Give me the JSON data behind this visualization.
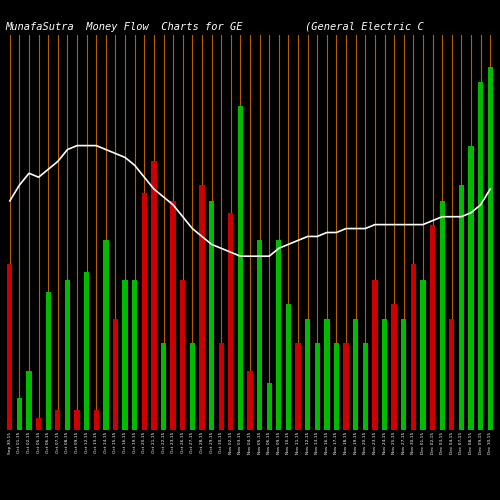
{
  "title": "MunafaSutra  Money Flow  Charts for GE          (General Electric C",
  "background_color": "#000000",
  "bar_colors": [
    "red",
    "green",
    "green",
    "red",
    "green",
    "red",
    "green",
    "red",
    "green",
    "red",
    "green",
    "red",
    "green",
    "green",
    "red",
    "red",
    "green",
    "red",
    "red",
    "green",
    "red",
    "green",
    "red",
    "red",
    "green",
    "red",
    "green",
    "green",
    "green",
    "green",
    "red",
    "green",
    "green",
    "green",
    "green",
    "red",
    "green",
    "green",
    "red",
    "green",
    "red",
    "green",
    "red",
    "green",
    "red",
    "green",
    "red",
    "green",
    "green",
    "green",
    "green"
  ],
  "bar_heights": [
    42,
    8,
    15,
    3,
    35,
    5,
    38,
    5,
    40,
    5,
    48,
    28,
    38,
    38,
    60,
    68,
    22,
    58,
    38,
    22,
    62,
    58,
    22,
    55,
    82,
    15,
    48,
    12,
    48,
    32,
    22,
    28,
    22,
    28,
    22,
    22,
    28,
    22,
    38,
    28,
    32,
    28,
    42,
    38,
    52,
    58,
    28,
    62,
    72,
    88,
    92
  ],
  "line_values": [
    58,
    62,
    65,
    64,
    66,
    68,
    71,
    72,
    72,
    72,
    71,
    70,
    69,
    67,
    64,
    61,
    59,
    57,
    54,
    51,
    49,
    47,
    46,
    45,
    44,
    44,
    44,
    44,
    46,
    47,
    48,
    49,
    49,
    50,
    50,
    51,
    51,
    51,
    52,
    52,
    52,
    52,
    52,
    52,
    53,
    54,
    54,
    54,
    55,
    57,
    61
  ],
  "x_labels": [
    "Sep 30,15",
    "Oct 01,15",
    "Oct 02,15",
    "Oct 05,15",
    "Oct 06,15",
    "Oct 07,15",
    "Oct 08,15",
    "Oct 09,15",
    "Oct 12,15",
    "Oct 13,15",
    "Oct 14,15",
    "Oct 15,15",
    "Oct 16,15",
    "Oct 19,15",
    "Oct 20,15",
    "Oct 21,15",
    "Oct 22,15",
    "Oct 23,15",
    "Oct 26,15",
    "Oct 27,15",
    "Oct 28,15",
    "Oct 29,15",
    "Oct 30,15",
    "Nov 02,15",
    "Nov 03,15",
    "Nov 04,15",
    "Nov 05,15",
    "Nov 06,15",
    "Nov 09,15",
    "Nov 10,15",
    "Nov 11,15",
    "Nov 12,15",
    "Nov 13,15",
    "Nov 16,15",
    "Nov 17,15",
    "Nov 18,15",
    "Nov 19,15",
    "Nov 20,15",
    "Nov 23,15",
    "Nov 24,15",
    "Nov 25,15",
    "Nov 27,15",
    "Nov 30,15",
    "Dec 01,15",
    "Dec 02,15",
    "Dec 03,15",
    "Dec 04,15",
    "Dec 07,15",
    "Dec 08,15",
    "Dec 09,15",
    "Dec 10,15"
  ],
  "orange_line_color": "#b85c00",
  "white_line_color": "#ffffff",
  "red_color": "#cc0000",
  "green_color": "#00bb00",
  "title_color": "#ffffff",
  "title_fontsize": 7.5,
  "ylim": [
    0,
    100
  ],
  "line_scale_min": 40,
  "line_scale_max": 80
}
